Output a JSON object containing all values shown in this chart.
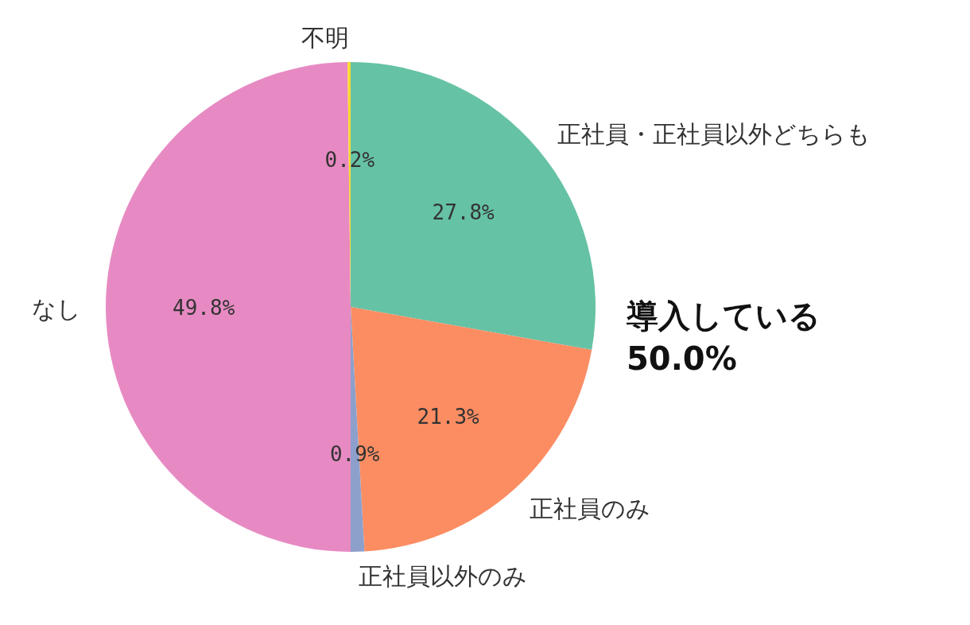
{
  "chart_data": {
    "type": "pie",
    "categories": [
      "正社員・正社員以外どちらも",
      "正社員のみ",
      "正社員以外のみ",
      "なし",
      "不明"
    ],
    "values": [
      27.8,
      21.3,
      0.9,
      49.8,
      0.2
    ],
    "colors": [
      "#66c2a5",
      "#fc8d62",
      "#8da0cb",
      "#e78ac3",
      "#ffd92f"
    ],
    "value_labels": [
      "27.8%",
      "21.3%",
      "0.9%",
      "49.8%",
      "0.2%"
    ],
    "annotations": [
      "導入している\n50.0%"
    ]
  }
}
